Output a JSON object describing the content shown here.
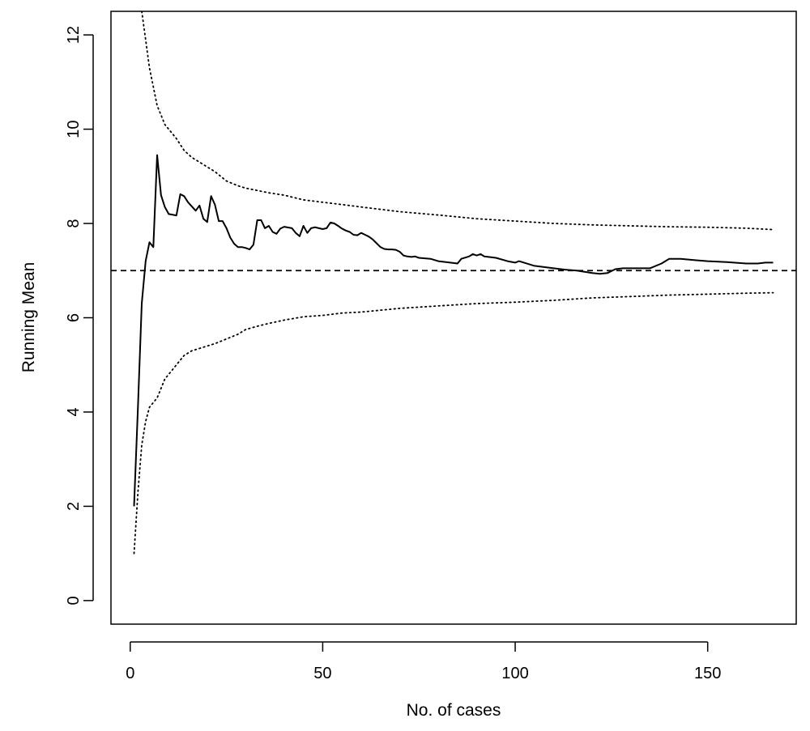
{
  "chart_data": {
    "type": "line",
    "xlabel": "No. of cases",
    "ylabel": "Running Mean",
    "xlim": [
      -5,
      173
    ],
    "ylim": [
      -0.5,
      12.5
    ],
    "xticks": [
      0,
      50,
      100,
      150
    ],
    "yticks": [
      0,
      2,
      4,
      6,
      8,
      10,
      12
    ],
    "grid": false,
    "reference_line": {
      "y": 7,
      "style": "dashed"
    },
    "series": [
      {
        "style": "solid",
        "x": [
          1,
          2,
          3,
          4,
          5,
          6,
          7,
          8,
          9,
          10,
          12,
          13,
          14,
          15,
          17,
          18,
          19,
          20,
          21,
          22,
          23,
          24,
          25,
          26,
          27,
          28,
          29,
          30,
          31,
          32,
          33,
          34,
          35,
          36,
          37,
          38,
          39,
          40,
          42,
          43,
          44,
          45,
          46,
          47,
          48,
          49,
          50,
          51,
          52,
          53,
          54,
          55,
          56,
          57,
          58,
          59,
          60,
          61,
          62,
          63,
          64,
          65,
          66,
          67,
          68,
          69,
          70,
          71,
          72,
          73,
          74,
          75,
          78,
          80,
          82,
          85,
          86,
          88,
          89,
          90,
          91,
          92,
          95,
          98,
          100,
          101,
          105,
          110,
          113,
          116,
          120,
          122,
          124,
          126,
          128,
          130,
          135,
          138,
          140,
          143,
          147,
          150,
          155,
          160,
          163,
          165,
          167
        ],
        "y": [
          2.0,
          4.1,
          6.3,
          7.2,
          7.6,
          7.5,
          9.45,
          8.6,
          8.35,
          8.2,
          8.17,
          8.62,
          8.58,
          8.45,
          8.27,
          8.38,
          8.1,
          8.03,
          8.58,
          8.4,
          8.05,
          8.05,
          7.9,
          7.7,
          7.57,
          7.5,
          7.5,
          7.48,
          7.45,
          7.55,
          8.07,
          8.07,
          7.9,
          7.95,
          7.82,
          7.78,
          7.89,
          7.93,
          7.9,
          7.8,
          7.73,
          7.95,
          7.8,
          7.9,
          7.92,
          7.9,
          7.88,
          7.9,
          8.02,
          8.0,
          7.95,
          7.89,
          7.85,
          7.82,
          7.76,
          7.75,
          7.8,
          7.76,
          7.72,
          7.66,
          7.58,
          7.5,
          7.46,
          7.45,
          7.45,
          7.44,
          7.4,
          7.32,
          7.3,
          7.29,
          7.3,
          7.27,
          7.25,
          7.2,
          7.18,
          7.15,
          7.25,
          7.3,
          7.35,
          7.32,
          7.35,
          7.3,
          7.27,
          7.2,
          7.17,
          7.2,
          7.1,
          7.05,
          7.02,
          7.0,
          6.95,
          6.93,
          6.95,
          7.03,
          7.05,
          7.05,
          7.05,
          7.15,
          7.25,
          7.25,
          7.22,
          7.2,
          7.18,
          7.15,
          7.15,
          7.17,
          7.17
        ]
      },
      {
        "style": "dotted",
        "x": [
          1,
          2,
          3,
          4,
          5,
          6,
          7,
          8,
          9,
          10,
          12,
          14,
          16,
          18,
          20,
          22,
          25,
          28,
          30,
          33,
          36,
          40,
          45,
          50,
          55,
          60,
          70,
          80,
          90,
          100,
          110,
          120,
          130,
          140,
          150,
          160,
          167
        ],
        "y": [
          1.0,
          2.3,
          3.3,
          3.8,
          4.1,
          4.2,
          4.3,
          4.5,
          4.7,
          4.8,
          5.0,
          5.2,
          5.3,
          5.35,
          5.4,
          5.45,
          5.55,
          5.65,
          5.75,
          5.82,
          5.88,
          5.95,
          6.02,
          6.05,
          6.1,
          6.12,
          6.2,
          6.25,
          6.3,
          6.33,
          6.37,
          6.42,
          6.45,
          6.48,
          6.5,
          6.52,
          6.53
        ]
      },
      {
        "style": "dotted",
        "x": [
          3,
          4,
          5,
          6,
          7,
          8,
          9,
          10,
          12,
          14,
          16,
          18,
          20,
          22,
          25,
          28,
          30,
          33,
          36,
          40,
          45,
          50,
          55,
          60,
          70,
          80,
          90,
          100,
          110,
          120,
          130,
          140,
          150,
          160,
          167
        ],
        "y": [
          12.5,
          11.9,
          11.3,
          10.9,
          10.5,
          10.3,
          10.1,
          10.0,
          9.8,
          9.55,
          9.4,
          9.3,
          9.2,
          9.1,
          8.9,
          8.8,
          8.75,
          8.7,
          8.65,
          8.6,
          8.5,
          8.45,
          8.4,
          8.35,
          8.25,
          8.18,
          8.1,
          8.05,
          8.0,
          7.97,
          7.95,
          7.93,
          7.92,
          7.9,
          7.87
        ]
      }
    ]
  }
}
